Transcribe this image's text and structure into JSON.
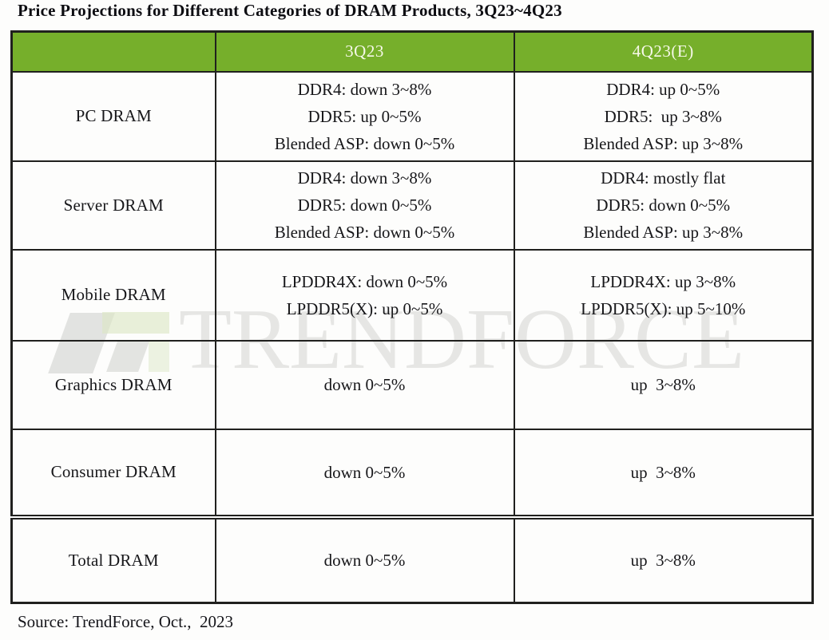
{
  "title": "Price Projections for Different Categories of DRAM Products, 3Q23~4Q23",
  "source_note": "Source: TrendForce, Oct.,  2023",
  "watermark": {
    "text": "TRENDFORCE",
    "logo": "trendforce-logo"
  },
  "colors": {
    "header_bg": "#76AF2B",
    "header_text": "#F6F8E8",
    "border": "#20201E",
    "watermark_text": "#E6E6E4",
    "logo_gray": "#D2D3D0",
    "logo_green": "#DBE7C3"
  },
  "chart_data": {
    "type": "table",
    "title": "Price Projections for Different Categories of DRAM Products, 3Q23~4Q23",
    "columns": [
      "",
      "3Q23",
      "4Q23(E)"
    ],
    "rows": [
      {
        "category": "PC DRAM",
        "cells": [
          [
            "DDR4: down 3~8%",
            "DDR5: up 0~5%",
            "Blended ASP: down 0~5%"
          ],
          [
            "DDR4: up 0~5%",
            "DDR5:  up 3~8%",
            "Blended ASP: up 3~8%"
          ]
        ]
      },
      {
        "category": "Server DRAM",
        "cells": [
          [
            "DDR4: down 3~8%",
            "DDR5: down 0~5%",
            "Blended ASP: down 0~5%"
          ],
          [
            "DDR4: mostly flat",
            "DDR5: down 0~5%",
            "Blended ASP: up 3~8%"
          ]
        ]
      },
      {
        "category": "Mobile DRAM",
        "cells": [
          [
            "LPDDR4X: down 0~5%",
            "LPDDR5(X): up 0~5%"
          ],
          [
            "LPDDR4X: up 3~8%",
            "LPDDR5(X): up 5~10%"
          ]
        ]
      },
      {
        "category": "Graphics DRAM",
        "cells": [
          [
            "down 0~5%"
          ],
          [
            "up  3~8%"
          ]
        ]
      },
      {
        "category": "Consumer DRAM",
        "cells": [
          [
            "down 0~5%"
          ],
          [
            "up  3~8%"
          ]
        ]
      },
      {
        "category": "Total DRAM",
        "summary_row": true,
        "cells": [
          [
            "down 0~5%"
          ],
          [
            "up  3~8%"
          ]
        ]
      }
    ],
    "source": "Source: TrendForce, Oct.,  2023"
  }
}
